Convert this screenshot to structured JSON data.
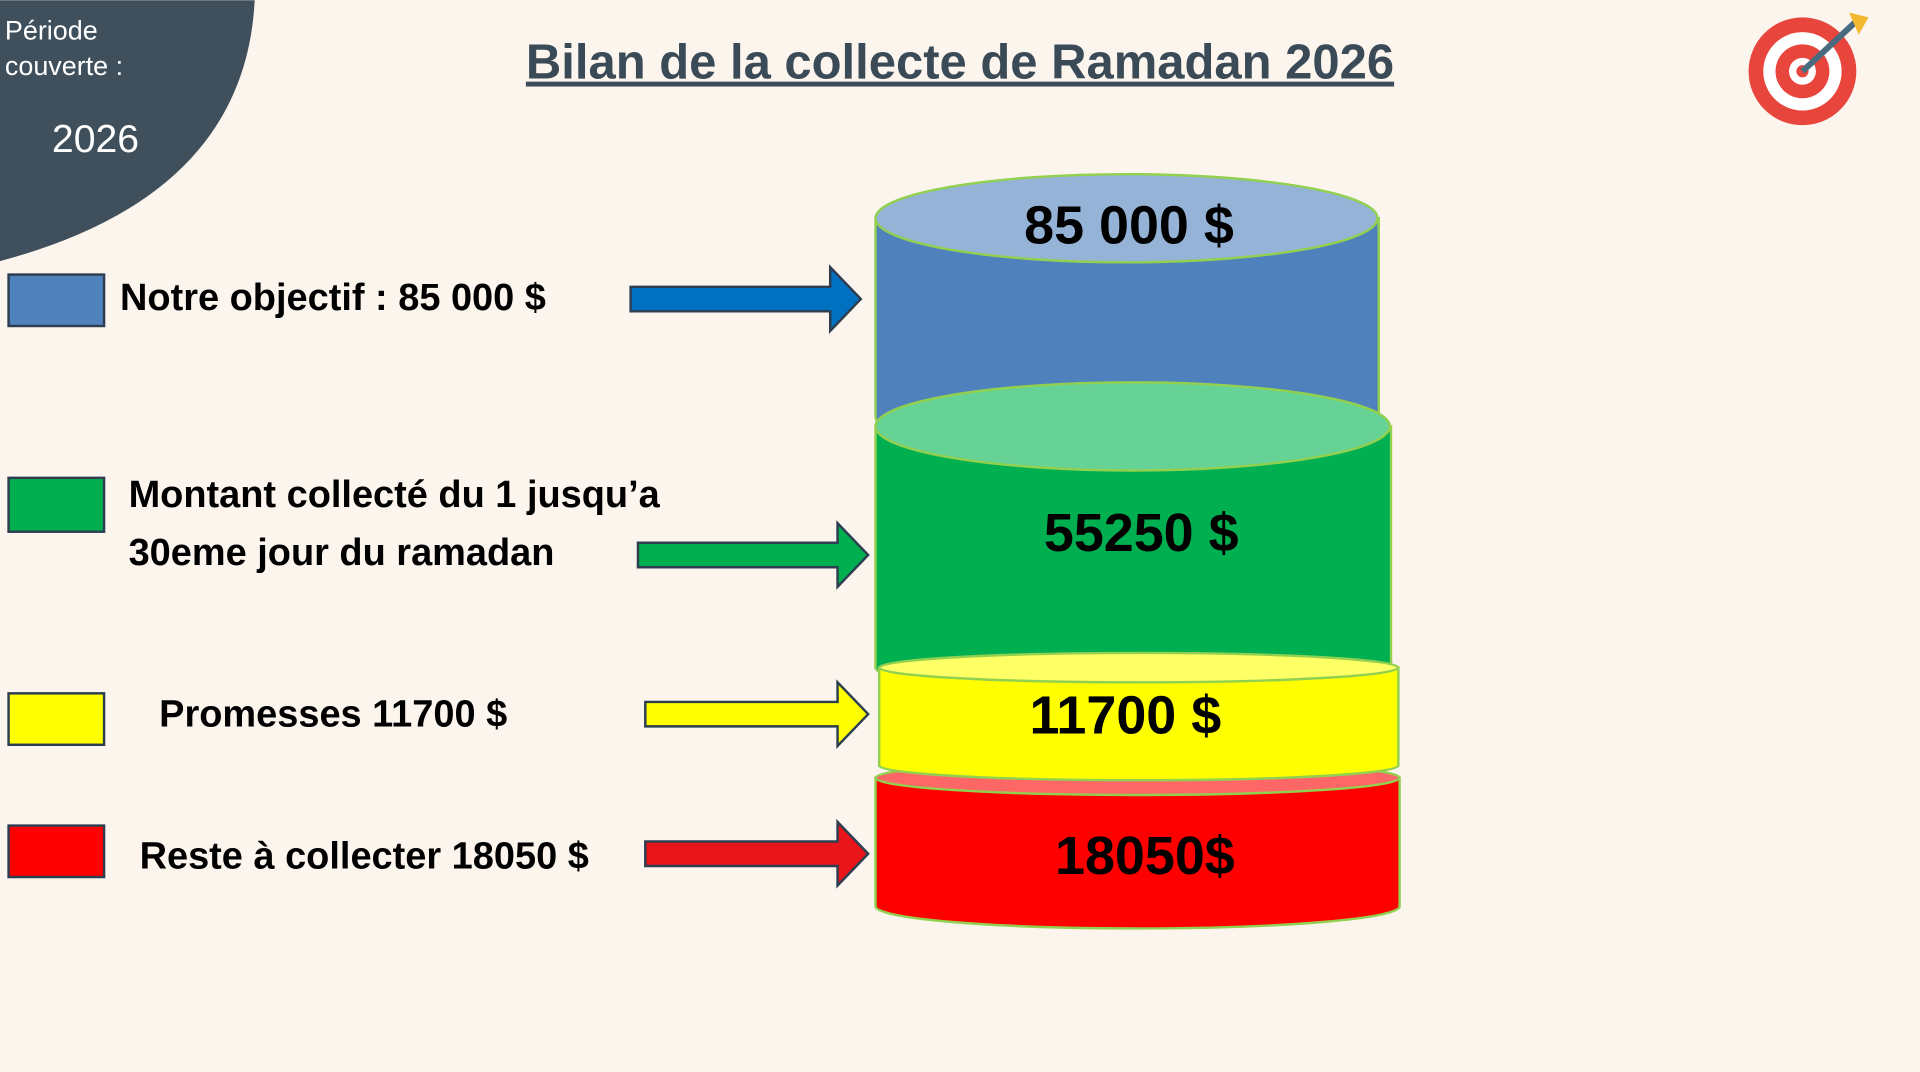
{
  "period": {
    "label": [
      "Période",
      "couverte :"
    ],
    "year": "2026"
  },
  "title": "Bilan de la collecte de Ramadan 2026",
  "legend": [
    {
      "label": [
        "Notre objectif : 85 000 $"
      ]
    },
    {
      "label": [
        "Montant collecté du 1 jusqu’a",
        "30eme jour du ramadan"
      ]
    },
    {
      "label": [
        "Promesses 11700 $"
      ]
    },
    {
      "label": [
        "Reste à collecter 18050 $"
      ]
    }
  ],
  "cylinder": [
    "85 000 $",
    "55250 $",
    "11700 $",
    "18050$"
  ]
}
